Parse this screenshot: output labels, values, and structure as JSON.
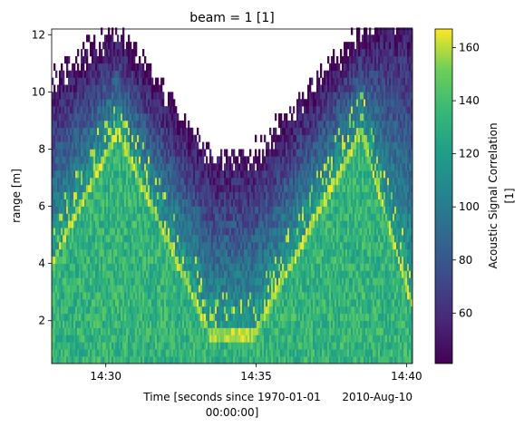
{
  "chart_data": {
    "type": "heatmap",
    "title": "beam = 1 [1]",
    "xlabel_line1": "Time [seconds since 1970-01-01",
    "xlabel_line2": "00:00:00]",
    "x_offset_label": "2010-Aug-10",
    "ylabel": "range [m]",
    "colorbar_label_line1": "Acoustic Signal Correlation",
    "colorbar_label_line2": "[1]",
    "colormap": "viridis",
    "xlim": [
      "14:28:12",
      "14:40:12"
    ],
    "ylim": [
      0.5,
      12.2
    ],
    "clim": [
      41,
      167
    ],
    "x_ticks": [
      {
        "value": "14:30",
        "minutes": 1.8
      },
      {
        "value": "14:35",
        "minutes": 6.8
      },
      {
        "value": "14:40",
        "minutes": 11.8
      }
    ],
    "y_ticks": [
      2,
      4,
      6,
      8,
      10,
      12
    ],
    "colorbar_ticks": [
      60,
      80,
      100,
      120,
      140,
      160
    ],
    "surface_track": {
      "description_free": true,
      "time_minutes": [
        0.0,
        2.2,
        5.3,
        6.7,
        10.3,
        12.0
      ],
      "range_m": [
        4.0,
        8.6,
        1.5,
        1.5,
        8.6,
        2.5
      ]
    },
    "data_extent_top_m": {
      "time_minutes": [
        0.0,
        2.2,
        5.3,
        6.7,
        10.3,
        12.0
      ],
      "range_m": [
        9.8,
        11.6,
        7.2,
        7.2,
        11.6,
        12.2
      ]
    },
    "grid": false,
    "legend": "colorbar-right"
  }
}
